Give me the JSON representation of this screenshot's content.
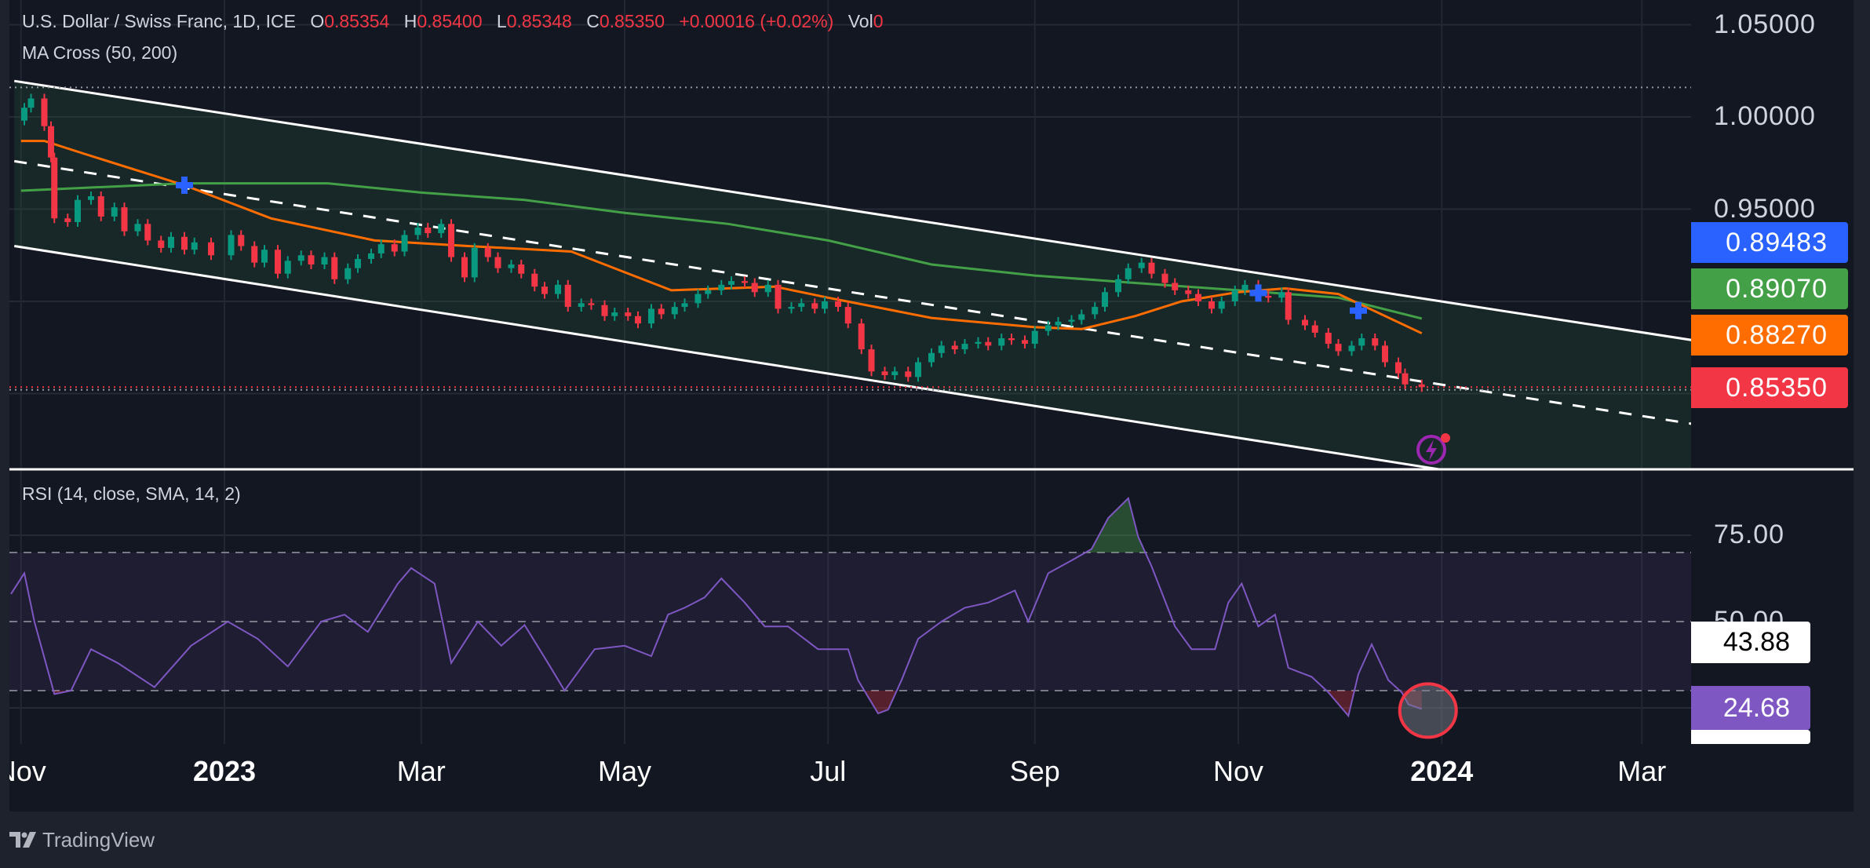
{
  "legend": {
    "symbol": "U.S. Dollar / Swiss Franc, 1D, ICE",
    "o_label": "O",
    "o": "0.85354",
    "h_label": "H",
    "h": "0.85400",
    "l_label": "L",
    "l": "0.85348",
    "c_label": "C",
    "c": "0.85350",
    "change": "+0.00016 (+0.02%)",
    "vol_label": "Vol",
    "vol": "0",
    "indicator": "MA Cross (50, 200)"
  },
  "rsi_legend": "RSI (14, close, SMA, 14, 2)",
  "price_axis": [
    "1.05000",
    "1.00000",
    "0.95000"
  ],
  "price_axis_values": [
    1.05,
    1.0,
    0.95
  ],
  "price_tags": [
    {
      "value": "0.89483",
      "color": "#2962ff"
    },
    {
      "value": "0.89070",
      "color": "#43a047"
    },
    {
      "value": "0.88270",
      "color": "#ff6d00"
    },
    {
      "value": "0.85350",
      "color": "#f23645"
    }
  ],
  "rsi_axis": [
    "75.00",
    "50.00"
  ],
  "rsi_tags": [
    {
      "value": "43.88",
      "bg": "#ffffff",
      "fg": "#000000"
    },
    {
      "value": "24.68",
      "bg": "#7e57c2",
      "fg": "#ffffff"
    }
  ],
  "time_axis": [
    {
      "label": "Nov",
      "date": "2022-11-01",
      "bold": false
    },
    {
      "label": "2023",
      "date": "2023-01-01",
      "bold": true
    },
    {
      "label": "Mar",
      "date": "2023-03-01",
      "bold": false
    },
    {
      "label": "May",
      "date": "2023-05-01",
      "bold": false
    },
    {
      "label": "Jul",
      "date": "2023-07-01",
      "bold": false
    },
    {
      "label": "Sep",
      "date": "2023-09-01",
      "bold": false
    },
    {
      "label": "Nov",
      "date": "2023-11-01",
      "bold": false
    },
    {
      "label": "2024",
      "date": "2024-01-01",
      "bold": true
    },
    {
      "label": "Mar",
      "date": "2024-03-01",
      "bold": false
    }
  ],
  "footer": {
    "brand": "TradingView"
  },
  "colors": {
    "up": "#089981",
    "down": "#f23645",
    "ma50": "#ff6d00",
    "ma200": "#43a047",
    "cross": "#2962ff",
    "rsi": "#7e57c2",
    "background": "#131722"
  },
  "chart_data": {
    "type": "candlestick",
    "close": [
      [
        "2022-10-31",
        0.998
      ],
      [
        "2022-11-02",
        1.005
      ],
      [
        "2022-11-04",
        1.01
      ],
      [
        "2022-11-08",
        0.995
      ],
      [
        "2022-11-10",
        0.978
      ],
      [
        "2022-11-11",
        0.945
      ],
      [
        "2022-11-15",
        0.943
      ],
      [
        "2022-11-18",
        0.955
      ],
      [
        "2022-11-22",
        0.957
      ],
      [
        "2022-11-25",
        0.946
      ],
      [
        "2022-11-29",
        0.951
      ],
      [
        "2022-12-02",
        0.938
      ],
      [
        "2022-12-06",
        0.942
      ],
      [
        "2022-12-09",
        0.933
      ],
      [
        "2022-12-13",
        0.929
      ],
      [
        "2022-12-16",
        0.935
      ],
      [
        "2022-12-20",
        0.928
      ],
      [
        "2022-12-23",
        0.932
      ],
      [
        "2022-12-28",
        0.925
      ],
      [
        "2023-01-03",
        0.936
      ],
      [
        "2023-01-06",
        0.93
      ],
      [
        "2023-01-10",
        0.921
      ],
      [
        "2023-01-13",
        0.928
      ],
      [
        "2023-01-17",
        0.915
      ],
      [
        "2023-01-20",
        0.922
      ],
      [
        "2023-01-24",
        0.925
      ],
      [
        "2023-01-27",
        0.92
      ],
      [
        "2023-01-31",
        0.924
      ],
      [
        "2023-02-03",
        0.912
      ],
      [
        "2023-02-07",
        0.918
      ],
      [
        "2023-02-10",
        0.923
      ],
      [
        "2023-02-14",
        0.926
      ],
      [
        "2023-02-17",
        0.931
      ],
      [
        "2023-02-21",
        0.927
      ],
      [
        "2023-02-24",
        0.936
      ],
      [
        "2023-02-28",
        0.94
      ],
      [
        "2023-03-03",
        0.937
      ],
      [
        "2023-03-07",
        0.942
      ],
      [
        "2023-03-10",
        0.924
      ],
      [
        "2023-03-14",
        0.913
      ],
      [
        "2023-03-17",
        0.929
      ],
      [
        "2023-03-21",
        0.924
      ],
      [
        "2023-03-24",
        0.918
      ],
      [
        "2023-03-28",
        0.92
      ],
      [
        "2023-03-31",
        0.915
      ],
      [
        "2023-04-04",
        0.908
      ],
      [
        "2023-04-07",
        0.904
      ],
      [
        "2023-04-11",
        0.909
      ],
      [
        "2023-04-14",
        0.897
      ],
      [
        "2023-04-18",
        0.899
      ],
      [
        "2023-04-21",
        0.898
      ],
      [
        "2023-04-25",
        0.892
      ],
      [
        "2023-04-28",
        0.894
      ],
      [
        "2023-05-02",
        0.892
      ],
      [
        "2023-05-05",
        0.888
      ],
      [
        "2023-05-09",
        0.896
      ],
      [
        "2023-05-12",
        0.893
      ],
      [
        "2023-05-16",
        0.897
      ],
      [
        "2023-05-19",
        0.899
      ],
      [
        "2023-05-23",
        0.904
      ],
      [
        "2023-05-26",
        0.906
      ],
      [
        "2023-05-30",
        0.909
      ],
      [
        "2023-06-02",
        0.911
      ],
      [
        "2023-06-06",
        0.91
      ],
      [
        "2023-06-09",
        0.905
      ],
      [
        "2023-06-13",
        0.909
      ],
      [
        "2023-06-16",
        0.896
      ],
      [
        "2023-06-20",
        0.897
      ],
      [
        "2023-06-23",
        0.899
      ],
      [
        "2023-06-27",
        0.896
      ],
      [
        "2023-06-30",
        0.9
      ],
      [
        "2023-07-04",
        0.897
      ],
      [
        "2023-07-07",
        0.888
      ],
      [
        "2023-07-11",
        0.874
      ],
      [
        "2023-07-14",
        0.862
      ],
      [
        "2023-07-18",
        0.86
      ],
      [
        "2023-07-21",
        0.862
      ],
      [
        "2023-07-25",
        0.859
      ],
      [
        "2023-07-28",
        0.867
      ],
      [
        "2023-08-01",
        0.872
      ],
      [
        "2023-08-04",
        0.876
      ],
      [
        "2023-08-08",
        0.874
      ],
      [
        "2023-08-11",
        0.877
      ],
      [
        "2023-08-15",
        0.878
      ],
      [
        "2023-08-18",
        0.876
      ],
      [
        "2023-08-22",
        0.88
      ],
      [
        "2023-08-25",
        0.879
      ],
      [
        "2023-08-29",
        0.877
      ],
      [
        "2023-09-01",
        0.884
      ],
      [
        "2023-09-05",
        0.887
      ],
      [
        "2023-09-08",
        0.889
      ],
      [
        "2023-09-12",
        0.89
      ],
      [
        "2023-09-15",
        0.893
      ],
      [
        "2023-09-19",
        0.897
      ],
      [
        "2023-09-22",
        0.905
      ],
      [
        "2023-09-26",
        0.912
      ],
      [
        "2023-09-29",
        0.918
      ],
      [
        "2023-10-03",
        0.921
      ],
      [
        "2023-10-06",
        0.915
      ],
      [
        "2023-10-10",
        0.91
      ],
      [
        "2023-10-13",
        0.906
      ],
      [
        "2023-10-17",
        0.904
      ],
      [
        "2023-10-20",
        0.9
      ],
      [
        "2023-10-24",
        0.896
      ],
      [
        "2023-10-27",
        0.9
      ],
      [
        "2023-10-31",
        0.906
      ],
      [
        "2023-11-03",
        0.909
      ],
      [
        "2023-11-07",
        0.903
      ],
      [
        "2023-11-10",
        0.902
      ],
      [
        "2023-11-14",
        0.905
      ],
      [
        "2023-11-16",
        0.89
      ],
      [
        "2023-11-21",
        0.887
      ],
      [
        "2023-11-24",
        0.883
      ],
      [
        "2023-11-28",
        0.877
      ],
      [
        "2023-12-01",
        0.873
      ],
      [
        "2023-12-05",
        0.876
      ],
      [
        "2023-12-08",
        0.88
      ],
      [
        "2023-12-12",
        0.876
      ],
      [
        "2023-12-15",
        0.867
      ],
      [
        "2023-12-19",
        0.861
      ],
      [
        "2023-12-21",
        0.855
      ],
      [
        "2023-12-26",
        0.8535
      ]
    ],
    "ma50": [
      [
        "2022-11-01",
        0.987
      ],
      [
        "2022-11-08",
        0.987
      ],
      [
        "2022-11-20",
        0.98
      ],
      [
        "2022-12-20",
        0.963
      ],
      [
        "2023-01-15",
        0.945
      ],
      [
        "2023-02-15",
        0.933
      ],
      [
        "2023-03-15",
        0.93
      ],
      [
        "2023-04-15",
        0.927
      ],
      [
        "2023-05-15",
        0.906
      ],
      [
        "2023-06-15",
        0.908
      ],
      [
        "2023-07-01",
        0.902
      ],
      [
        "2023-08-01",
        0.891
      ],
      [
        "2023-09-01",
        0.886
      ],
      [
        "2023-09-15",
        0.885
      ],
      [
        "2023-10-01",
        0.892
      ],
      [
        "2023-10-15",
        0.9
      ],
      [
        "2023-11-01",
        0.905
      ],
      [
        "2023-11-15",
        0.907
      ],
      [
        "2023-12-01",
        0.904
      ],
      [
        "2023-12-26",
        0.8827
      ]
    ],
    "ma200": [
      [
        "2022-11-01",
        0.96
      ],
      [
        "2022-12-20",
        0.964
      ],
      [
        "2023-02-01",
        0.964
      ],
      [
        "2023-03-01",
        0.959
      ],
      [
        "2023-04-01",
        0.955
      ],
      [
        "2023-05-01",
        0.948
      ],
      [
        "2023-06-01",
        0.942
      ],
      [
        "2023-07-01",
        0.933
      ],
      [
        "2023-08-01",
        0.92
      ],
      [
        "2023-09-01",
        0.914
      ],
      [
        "2023-10-01",
        0.91
      ],
      [
        "2023-11-01",
        0.906
      ],
      [
        "2023-12-01",
        0.902
      ],
      [
        "2023-12-26",
        0.8907
      ]
    ],
    "cross_markers": [
      [
        "2022-12-20",
        0.963
      ],
      [
        "2023-11-07",
        0.9045
      ],
      [
        "2023-12-07",
        0.895
      ]
    ],
    "channel": {
      "upper": [
        [
          "2022-10-30",
          1.0195
        ],
        [
          "2024-03-16",
          0.879
        ]
      ],
      "middle": [
        [
          "2022-10-30",
          0.976
        ],
        [
          "2024-03-16",
          0.8336
        ]
      ],
      "lower": [
        [
          "2022-10-30",
          0.93
        ],
        [
          "2023-12-31",
          0.809
        ]
      ]
    },
    "horizontal_levels": {
      "high": 1.016,
      "last": 0.8535,
      "low": 0.852
    },
    "price_range": [
      0.8,
      1.06
    ],
    "rsi": {
      "levels": [
        70,
        50,
        30
      ],
      "values": [
        [
          "2022-10-29",
          58
        ],
        [
          "2022-11-02",
          64
        ],
        [
          "2022-11-05",
          50
        ],
        [
          "2022-11-11",
          29
        ],
        [
          "2022-11-16",
          30
        ],
        [
          "2022-11-22",
          42
        ],
        [
          "2022-11-30",
          38
        ],
        [
          "2022-12-11",
          31
        ],
        [
          "2022-12-22",
          43
        ],
        [
          "2023-01-02",
          50
        ],
        [
          "2023-01-11",
          45
        ],
        [
          "2023-01-20",
          37
        ],
        [
          "2023-01-30",
          50
        ],
        [
          "2023-02-06",
          52
        ],
        [
          "2023-02-13",
          47
        ],
        [
          "2023-02-22",
          61
        ],
        [
          "2023-02-26",
          65.5
        ],
        [
          "2023-03-05",
          61
        ],
        [
          "2023-03-10",
          38
        ],
        [
          "2023-03-18",
          50
        ],
        [
          "2023-03-25",
          43
        ],
        [
          "2023-04-01",
          49
        ],
        [
          "2023-04-08",
          38
        ],
        [
          "2023-04-13",
          30
        ],
        [
          "2023-04-22",
          42
        ],
        [
          "2023-05-01",
          43
        ],
        [
          "2023-05-09",
          40
        ],
        [
          "2023-05-14",
          52
        ],
        [
          "2023-05-19",
          54
        ],
        [
          "2023-05-25",
          57
        ],
        [
          "2023-05-30",
          62.5
        ],
        [
          "2023-06-06",
          55.5
        ],
        [
          "2023-06-12",
          48.6
        ],
        [
          "2023-06-19",
          48.6
        ],
        [
          "2023-06-28",
          42
        ],
        [
          "2023-07-07",
          42
        ],
        [
          "2023-07-10",
          33
        ],
        [
          "2023-07-16",
          23.4
        ],
        [
          "2023-07-19",
          24.5
        ],
        [
          "2023-07-23",
          33
        ],
        [
          "2023-07-28",
          45
        ],
        [
          "2023-08-04",
          50
        ],
        [
          "2023-08-11",
          54
        ],
        [
          "2023-08-18",
          55.5
        ],
        [
          "2023-08-26",
          59
        ],
        [
          "2023-08-30",
          50
        ],
        [
          "2023-09-05",
          64
        ],
        [
          "2023-09-12",
          67.7
        ],
        [
          "2023-09-18",
          71
        ],
        [
          "2023-09-23",
          80
        ],
        [
          "2023-09-29",
          85.7
        ],
        [
          "2023-10-02",
          74.5
        ],
        [
          "2023-10-06",
          66
        ],
        [
          "2023-10-13",
          48.6
        ],
        [
          "2023-10-18",
          42
        ],
        [
          "2023-10-25",
          42
        ],
        [
          "2023-10-29",
          55.5
        ],
        [
          "2023-11-02",
          61
        ],
        [
          "2023-11-07",
          48.6
        ],
        [
          "2023-11-12",
          52
        ],
        [
          "2023-11-16",
          36.6
        ],
        [
          "2023-11-23",
          34
        ],
        [
          "2023-11-28",
          29.5
        ],
        [
          "2023-12-04",
          22.7
        ],
        [
          "2023-12-07",
          34.8
        ],
        [
          "2023-12-11",
          43.4
        ],
        [
          "2023-12-16",
          33
        ],
        [
          "2023-12-20",
          29.5
        ],
        [
          "2023-12-22",
          26
        ],
        [
          "2023-12-26",
          24.68
        ]
      ],
      "sma_last": 43.88,
      "last": 24.68
    }
  }
}
